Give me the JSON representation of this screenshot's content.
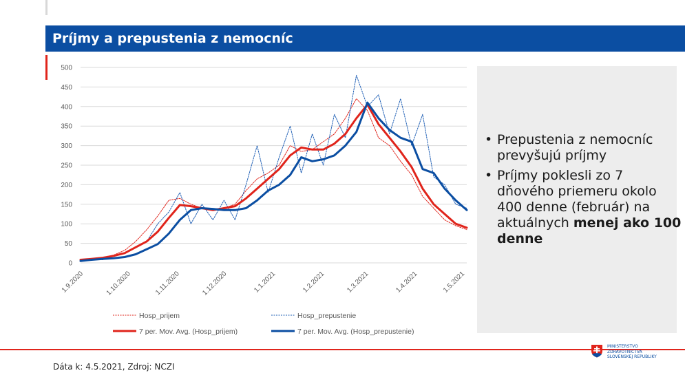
{
  "slide": {
    "title": "Príjmy a prepustenia z nemocníc",
    "notes": [
      {
        "text": "Prepustenia z nemocníc prevyšujú príjmy",
        "bold": ""
      },
      {
        "text": "Príjmy poklesli zo 7 dňového priemeru okolo 400 denne (február) na aktuálnych ",
        "bold": "menej ako 100 denne"
      }
    ],
    "source": "Dáta k: 4.5.2021, Zdroj: NCZI",
    "logo": {
      "line1": "MINISTERSTVO",
      "line2": "ZDRAVOTNÍCTVA",
      "line3": "SLOVENSKEJ REPUBLIKY"
    }
  },
  "colors": {
    "title_bg": "#0b4ea2",
    "prijem": "#e0241b",
    "prepustenie": "#1f5fb5",
    "prepustenie_avg": "#0b4ea2",
    "accent": "#e0241b"
  },
  "chart_data": {
    "type": "line",
    "x_start": "1.9.2020",
    "x_end": "4.5.2021",
    "xtick_labels": [
      "1.9.2020",
      "1.10.2020",
      "1.11.2020",
      "1.12.2020",
      "1.1.2021",
      "1.2.2021",
      "1.3.2021",
      "1.4.2021",
      "1.5.2021"
    ],
    "ylim": [
      0,
      500
    ],
    "yticks": [
      0,
      50,
      100,
      150,
      200,
      250,
      300,
      350,
      400,
      450,
      500
    ],
    "grid": "horizontal",
    "legend_position": "bottom",
    "series": [
      {
        "name": "Hosp_prijem",
        "style": "dotted",
        "color": "#e0241b",
        "approx_points": [
          [
            "1.9.2020",
            8
          ],
          [
            "8.9.2020",
            10
          ],
          [
            "15.9.2020",
            14
          ],
          [
            "22.9.2020",
            20
          ],
          [
            "29.9.2020",
            32
          ],
          [
            "6.10.2020",
            55
          ],
          [
            "13.10.2020",
            85
          ],
          [
            "20.10.2020",
            120
          ],
          [
            "27.10.2020",
            160
          ],
          [
            "3.11.2020",
            165
          ],
          [
            "10.11.2020",
            150
          ],
          [
            "17.11.2020",
            140
          ],
          [
            "24.11.2020",
            138
          ],
          [
            "1.12.2020",
            140
          ],
          [
            "8.12.2020",
            150
          ],
          [
            "15.12.2020",
            185
          ],
          [
            "22.12.2020",
            215
          ],
          [
            "29.12.2020",
            230
          ],
          [
            "5.1.2021",
            250
          ],
          [
            "12.1.2021",
            300
          ],
          [
            "19.1.2021",
            285
          ],
          [
            "26.1.2021",
            290
          ],
          [
            "2.2.2021",
            310
          ],
          [
            "9.2.2021",
            330
          ],
          [
            "16.2.2021",
            370
          ],
          [
            "23.2.2021",
            420
          ],
          [
            "2.3.2021",
            390
          ],
          [
            "9.3.2021",
            320
          ],
          [
            "16.3.2021",
            300
          ],
          [
            "23.3.2021",
            260
          ],
          [
            "30.3.2021",
            225
          ],
          [
            "6.4.2021",
            170
          ],
          [
            "13.4.2021",
            140
          ],
          [
            "20.4.2021",
            110
          ],
          [
            "27.4.2021",
            95
          ],
          [
            "4.5.2021",
            85
          ]
        ]
      },
      {
        "name": "Hosp_prepustenie",
        "style": "dotted",
        "color": "#1f5fb5",
        "approx_points": [
          [
            "1.9.2020",
            5
          ],
          [
            "8.9.2020",
            12
          ],
          [
            "15.9.2020",
            8
          ],
          [
            "22.9.2020",
            18
          ],
          [
            "29.9.2020",
            25
          ],
          [
            "6.10.2020",
            40
          ],
          [
            "13.10.2020",
            55
          ],
          [
            "20.10.2020",
            100
          ],
          [
            "27.10.2020",
            130
          ],
          [
            "3.11.2020",
            180
          ],
          [
            "10.11.2020",
            100
          ],
          [
            "17.11.2020",
            150
          ],
          [
            "24.11.2020",
            110
          ],
          [
            "1.12.2020",
            160
          ],
          [
            "8.12.2020",
            110
          ],
          [
            "15.12.2020",
            200
          ],
          [
            "22.12.2020",
            300
          ],
          [
            "29.12.2020",
            180
          ],
          [
            "5.1.2021",
            270
          ],
          [
            "12.1.2021",
            350
          ],
          [
            "19.1.2021",
            230
          ],
          [
            "26.1.2021",
            330
          ],
          [
            "2.2.2021",
            250
          ],
          [
            "9.2.2021",
            380
          ],
          [
            "16.2.2021",
            320
          ],
          [
            "23.2.2021",
            480
          ],
          [
            "2.3.2021",
            400
          ],
          [
            "9.3.2021",
            430
          ],
          [
            "16.3.2021",
            330
          ],
          [
            "23.3.2021",
            420
          ],
          [
            "30.3.2021",
            300
          ],
          [
            "6.4.2021",
            380
          ],
          [
            "13.4.2021",
            220
          ],
          [
            "20.4.2021",
            200
          ],
          [
            "27.4.2021",
            150
          ],
          [
            "4.5.2021",
            140
          ]
        ]
      },
      {
        "name": "7 per. Mov. Avg. (Hosp_prijem)",
        "style": "solid",
        "color": "#e0241b",
        "approx_points": [
          [
            "1.9.2020",
            8
          ],
          [
            "8.9.2020",
            10
          ],
          [
            "15.9.2020",
            13
          ],
          [
            "22.9.2020",
            18
          ],
          [
            "29.9.2020",
            25
          ],
          [
            "6.10.2020",
            40
          ],
          [
            "13.10.2020",
            55
          ],
          [
            "20.10.2020",
            80
          ],
          [
            "27.10.2020",
            115
          ],
          [
            "3.11.2020",
            148
          ],
          [
            "10.11.2020",
            145
          ],
          [
            "17.11.2020",
            140
          ],
          [
            "24.11.2020",
            135
          ],
          [
            "1.12.2020",
            140
          ],
          [
            "8.12.2020",
            145
          ],
          [
            "15.12.2020",
            165
          ],
          [
            "22.12.2020",
            190
          ],
          [
            "29.12.2020",
            215
          ],
          [
            "5.1.2021",
            240
          ],
          [
            "12.1.2021",
            275
          ],
          [
            "19.1.2021",
            295
          ],
          [
            "26.1.2021",
            290
          ],
          [
            "2.2.2021",
            290
          ],
          [
            "9.2.2021",
            305
          ],
          [
            "16.2.2021",
            330
          ],
          [
            "23.2.2021",
            370
          ],
          [
            "2.3.2021",
            405
          ],
          [
            "9.3.2021",
            355
          ],
          [
            "16.3.2021",
            320
          ],
          [
            "23.3.2021",
            285
          ],
          [
            "30.3.2021",
            245
          ],
          [
            "6.4.2021",
            190
          ],
          [
            "13.4.2021",
            150
          ],
          [
            "20.4.2021",
            125
          ],
          [
            "27.4.2021",
            100
          ],
          [
            "4.5.2021",
            90
          ]
        ]
      },
      {
        "name": "7 per. Mov. Avg. (Hosp_prepustenie)",
        "style": "solid",
        "color": "#0b4ea2",
        "approx_points": [
          [
            "1.9.2020",
            5
          ],
          [
            "8.9.2020",
            8
          ],
          [
            "15.9.2020",
            10
          ],
          [
            "22.9.2020",
            12
          ],
          [
            "29.9.2020",
            15
          ],
          [
            "6.10.2020",
            22
          ],
          [
            "13.10.2020",
            35
          ],
          [
            "20.10.2020",
            48
          ],
          [
            "27.10.2020",
            75
          ],
          [
            "3.11.2020",
            110
          ],
          [
            "10.11.2020",
            135
          ],
          [
            "17.11.2020",
            140
          ],
          [
            "24.11.2020",
            138
          ],
          [
            "1.12.2020",
            135
          ],
          [
            "8.12.2020",
            135
          ],
          [
            "15.12.2020",
            140
          ],
          [
            "22.12.2020",
            160
          ],
          [
            "29.12.2020",
            185
          ],
          [
            "5.1.2021",
            200
          ],
          [
            "12.1.2021",
            225
          ],
          [
            "19.1.2021",
            270
          ],
          [
            "26.1.2021",
            260
          ],
          [
            "2.2.2021",
            265
          ],
          [
            "9.2.2021",
            275
          ],
          [
            "16.2.2021",
            300
          ],
          [
            "23.2.2021",
            335
          ],
          [
            "2.3.2021",
            410
          ],
          [
            "9.3.2021",
            370
          ],
          [
            "16.3.2021",
            340
          ],
          [
            "23.3.2021",
            320
          ],
          [
            "30.3.2021",
            310
          ],
          [
            "6.4.2021",
            240
          ],
          [
            "13.4.2021",
            230
          ],
          [
            "20.4.2021",
            190
          ],
          [
            "27.4.2021",
            160
          ],
          [
            "4.5.2021",
            135
          ]
        ]
      }
    ]
  }
}
